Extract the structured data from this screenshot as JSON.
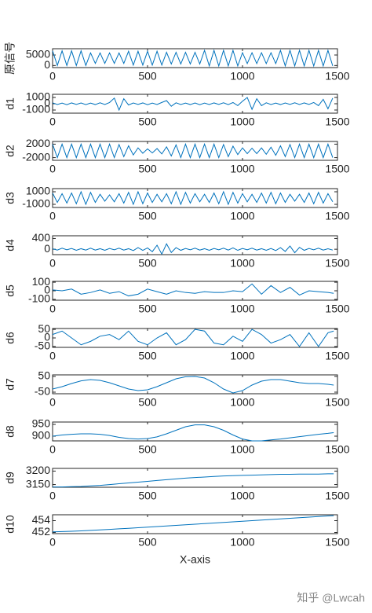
{
  "watermark": "知乎 @Lwcah",
  "chart_data": [
    {
      "type": "line",
      "ylabel": "原信号",
      "color": "#0072bd",
      "xlim": [
        0,
        1500
      ],
      "xticks": [
        0,
        500,
        1000,
        1500
      ],
      "ylim": [
        -1000,
        8000
      ],
      "yticks": [
        0,
        5000
      ],
      "x": [
        0,
        25,
        50,
        75,
        100,
        125,
        150,
        175,
        200,
        225,
        250,
        275,
        300,
        325,
        350,
        375,
        400,
        425,
        450,
        475,
        500,
        525,
        550,
        575,
        600,
        625,
        650,
        675,
        700,
        725,
        750,
        775,
        800,
        825,
        850,
        875,
        900,
        925,
        950,
        975,
        1000,
        1025,
        1050,
        1075,
        1100,
        1125,
        1150,
        1175,
        1200,
        1225,
        1250,
        1275,
        1300,
        1325,
        1350,
        1375,
        1400,
        1425,
        1450,
        1475
      ],
      "values": [
        7000,
        0,
        7000,
        0,
        7000,
        0,
        7000,
        0,
        6000,
        1000,
        6000,
        1000,
        6000,
        1000,
        6000,
        1000,
        6800,
        200,
        6800,
        200,
        6800,
        200,
        6800,
        200,
        6300,
        700,
        6300,
        700,
        6300,
        700,
        6300,
        700,
        7200,
        -200,
        7200,
        -200,
        7200,
        -200,
        7200,
        -200,
        6100,
        900,
        6100,
        900,
        6100,
        900,
        6100,
        900,
        7200,
        -200,
        7200,
        -200,
        7200,
        -200,
        7200,
        -200,
        7200,
        -200,
        7200,
        -200
      ]
    },
    {
      "type": "line",
      "ylabel": "d1",
      "color": "#0072bd",
      "xlim": [
        0,
        1500
      ],
      "xticks": [
        0,
        500,
        1000,
        1500
      ],
      "ylim": [
        -1500,
        1500
      ],
      "yticks": [
        -1000,
        0,
        1000
      ],
      "x": [
        0,
        25,
        50,
        75,
        100,
        125,
        150,
        175,
        200,
        225,
        250,
        275,
        300,
        325,
        350,
        375,
        400,
        425,
        450,
        475,
        500,
        525,
        550,
        575,
        600,
        625,
        650,
        675,
        700,
        725,
        750,
        775,
        800,
        825,
        850,
        875,
        900,
        925,
        950,
        975,
        1000,
        1025,
        1050,
        1075,
        1100,
        1125,
        1150,
        1175,
        1200,
        1225,
        1250,
        1275,
        1300,
        1325,
        1350,
        1375,
        1400,
        1425,
        1450,
        1475
      ],
      "values": [
        150,
        -120,
        100,
        -150,
        130,
        -100,
        120,
        -140,
        100,
        -130,
        150,
        -120,
        200,
        900,
        -1000,
        800,
        -200,
        120,
        -100,
        130,
        -150,
        100,
        -120,
        200,
        500,
        -400,
        150,
        -120,
        100,
        -130,
        120,
        -150,
        100,
        -120,
        130,
        -100,
        150,
        -130,
        200,
        -300,
        400,
        1000,
        -900,
        800,
        -300,
        150,
        -120,
        100,
        -130,
        120,
        -100,
        150,
        -120,
        130,
        -100,
        200,
        -300,
        700,
        -800,
        900
      ]
    },
    {
      "type": "line",
      "ylabel": "d2",
      "color": "#0072bd",
      "xlim": [
        0,
        1500
      ],
      "xticks": [
        0,
        500,
        1000,
        1500
      ],
      "ylim": [
        -2800,
        2800
      ],
      "yticks": [
        -2000,
        2000
      ],
      "x": [
        0,
        25,
        50,
        75,
        100,
        125,
        150,
        175,
        200,
        225,
        250,
        275,
        300,
        325,
        350,
        375,
        400,
        425,
        450,
        475,
        500,
        525,
        550,
        575,
        600,
        625,
        650,
        675,
        700,
        725,
        750,
        775,
        800,
        825,
        850,
        875,
        900,
        925,
        950,
        975,
        1000,
        1025,
        1050,
        1075,
        1100,
        1125,
        1150,
        1175,
        1200,
        1225,
        1250,
        1275,
        1300,
        1325,
        1350,
        1375,
        1400,
        1425,
        1450,
        1475
      ],
      "values": [
        2000,
        -2000,
        2000,
        -2000,
        2000,
        -2000,
        2000,
        -2000,
        2000,
        -2000,
        2000,
        -2000,
        2000,
        -2000,
        1900,
        -1700,
        1500,
        -1200,
        900,
        -700,
        600,
        -600,
        700,
        -900,
        1200,
        -1500,
        1800,
        -2000,
        2000,
        -2000,
        2000,
        -2000,
        2000,
        -2000,
        2000,
        -2000,
        1900,
        -1700,
        1400,
        -1100,
        900,
        -800,
        800,
        -800,
        900,
        -1000,
        1100,
        -1300,
        1500,
        -1700,
        1900,
        -2000,
        2000,
        -2000,
        2000,
        -2000,
        2000,
        -2000,
        2000,
        -2000
      ]
    },
    {
      "type": "line",
      "ylabel": "d3",
      "color": "#0072bd",
      "xlim": [
        0,
        1500
      ],
      "xticks": [
        0,
        500,
        1000,
        1500
      ],
      "ylim": [
        -1500,
        1500
      ],
      "yticks": [
        -1000,
        1000
      ],
      "x": [
        0,
        25,
        50,
        75,
        100,
        125,
        150,
        175,
        200,
        225,
        250,
        275,
        300,
        325,
        350,
        375,
        400,
        425,
        450,
        475,
        500,
        525,
        550,
        575,
        600,
        625,
        650,
        675,
        700,
        725,
        750,
        775,
        800,
        825,
        850,
        875,
        900,
        925,
        950,
        975,
        1000,
        1025,
        1050,
        1075,
        1100,
        1125,
        1150,
        1175,
        1200,
        1225,
        1250,
        1275,
        1300,
        1325,
        1350,
        1375,
        1400,
        1425,
        1450,
        1475
      ],
      "values": [
        800,
        -700,
        700,
        -800,
        800,
        -900,
        1000,
        -1000,
        900,
        -700,
        600,
        -500,
        500,
        -600,
        700,
        -800,
        900,
        -1000,
        1000,
        -900,
        800,
        -700,
        600,
        -600,
        700,
        -900,
        1000,
        -1000,
        900,
        -800,
        700,
        -600,
        600,
        -700,
        800,
        -900,
        1000,
        -1000,
        900,
        -800,
        700,
        -600,
        600,
        -700,
        800,
        -800,
        900,
        -900,
        800,
        -700,
        600,
        -500,
        600,
        -700,
        800,
        -900,
        900,
        -800,
        700,
        -600
      ]
    },
    {
      "type": "line",
      "ylabel": "d4",
      "color": "#0072bd",
      "xlim": [
        0,
        1500
      ],
      "xticks": [
        0,
        500,
        1000,
        1500
      ],
      "ylim": [
        -200,
        500
      ],
      "yticks": [
        0,
        400
      ],
      "x": [
        0,
        25,
        50,
        75,
        100,
        125,
        150,
        175,
        200,
        225,
        250,
        275,
        300,
        325,
        350,
        375,
        400,
        425,
        450,
        475,
        500,
        525,
        550,
        575,
        600,
        625,
        650,
        675,
        700,
        725,
        750,
        775,
        800,
        825,
        850,
        875,
        900,
        925,
        950,
        975,
        1000,
        1025,
        1050,
        1075,
        1100,
        1125,
        1150,
        1175,
        1200,
        1225,
        1250,
        1275,
        1300,
        1325,
        1350,
        1375,
        1400,
        1425,
        1450,
        1475
      ],
      "values": [
        20,
        -30,
        40,
        -20,
        30,
        -40,
        20,
        -30,
        40,
        -30,
        20,
        -40,
        30,
        -20,
        40,
        -30,
        20,
        -50,
        60,
        -40,
        50,
        -90,
        150,
        -180,
        200,
        -120,
        60,
        -40,
        30,
        -20,
        40,
        -30,
        20,
        -40,
        30,
        -20,
        40,
        -30,
        50,
        -40,
        30,
        -20,
        40,
        -30,
        20,
        -40,
        30,
        -50,
        60,
        -80,
        120,
        -130,
        70,
        -40,
        30,
        -20,
        40,
        -30,
        20,
        -30
      ]
    },
    {
      "type": "line",
      "ylabel": "d5",
      "color": "#0072bd",
      "xlim": [
        0,
        1500
      ],
      "xticks": [
        0,
        500,
        1000,
        1500
      ],
      "ylim": [
        -110,
        110
      ],
      "yticks": [
        -100,
        0,
        100
      ],
      "x": [
        0,
        50,
        100,
        150,
        200,
        250,
        300,
        350,
        400,
        450,
        500,
        550,
        600,
        650,
        700,
        750,
        800,
        850,
        900,
        950,
        1000,
        1050,
        1100,
        1150,
        1200,
        1250,
        1300,
        1350,
        1400,
        1450,
        1480
      ],
      "values": [
        10,
        0,
        20,
        -40,
        -20,
        10,
        -30,
        -10,
        -60,
        -40,
        20,
        -10,
        -40,
        0,
        -20,
        -30,
        -10,
        -20,
        -20,
        0,
        -10,
        80,
        -40,
        60,
        -20,
        40,
        -50,
        0,
        -10,
        -20,
        -30
      ]
    },
    {
      "type": "line",
      "ylabel": "d6",
      "color": "#0072bd",
      "xlim": [
        0,
        1500
      ],
      "xticks": [
        0,
        500,
        1000,
        1500
      ],
      "ylim": [
        -55,
        55
      ],
      "yticks": [
        -50,
        0,
        50
      ],
      "x": [
        0,
        50,
        100,
        150,
        200,
        250,
        300,
        350,
        400,
        450,
        500,
        550,
        600,
        650,
        700,
        750,
        800,
        850,
        900,
        950,
        1000,
        1050,
        1100,
        1150,
        1200,
        1250,
        1300,
        1350,
        1400,
        1450,
        1480
      ],
      "values": [
        20,
        40,
        0,
        -40,
        -20,
        10,
        20,
        -10,
        40,
        -20,
        -40,
        0,
        30,
        -40,
        -10,
        50,
        40,
        -30,
        -40,
        10,
        -20,
        50,
        20,
        -30,
        -10,
        20,
        -50,
        30,
        -50,
        30,
        40
      ]
    },
    {
      "type": "line",
      "ylabel": "d7",
      "color": "#0072bd",
      "xlim": [
        0,
        1500
      ],
      "xticks": [
        0,
        500,
        1000,
        1500
      ],
      "ylim": [
        -60,
        60
      ],
      "yticks": [
        -50,
        50
      ],
      "x": [
        0,
        50,
        100,
        150,
        200,
        250,
        300,
        350,
        400,
        450,
        500,
        550,
        600,
        650,
        700,
        750,
        800,
        850,
        900,
        950,
        1000,
        1050,
        1100,
        1150,
        1200,
        1250,
        1300,
        1350,
        1400,
        1450,
        1480
      ],
      "values": [
        -30,
        -15,
        5,
        22,
        30,
        25,
        10,
        -10,
        -30,
        -40,
        -35,
        -15,
        10,
        35,
        48,
        50,
        40,
        10,
        -30,
        -55,
        -40,
        -5,
        20,
        30,
        30,
        20,
        10,
        5,
        5,
        0,
        -5
      ]
    },
    {
      "type": "line",
      "ylabel": "d8",
      "color": "#0072bd",
      "xlim": [
        0,
        1500
      ],
      "xticks": [
        0,
        500,
        1000,
        1500
      ],
      "ylim": [
        880,
        960
      ],
      "yticks": [
        900,
        950
      ],
      "x": [
        0,
        50,
        100,
        150,
        200,
        250,
        300,
        350,
        400,
        450,
        500,
        550,
        600,
        650,
        700,
        750,
        800,
        850,
        900,
        950,
        1000,
        1050,
        1100,
        1150,
        1200,
        1250,
        1300,
        1350,
        1400,
        1450,
        1480
      ],
      "values": [
        900,
        905,
        908,
        910,
        910,
        908,
        903,
        895,
        890,
        888,
        890,
        897,
        910,
        925,
        940,
        948,
        948,
        940,
        925,
        905,
        888,
        880,
        880,
        884,
        888,
        893,
        898,
        903,
        908,
        912,
        915
      ]
    },
    {
      "type": "line",
      "ylabel": "d9",
      "color": "#0072bd",
      "xlim": [
        0,
        1500
      ],
      "xticks": [
        0,
        500,
        1000,
        1500
      ],
      "ylim": [
        3140,
        3210
      ],
      "yticks": [
        3150,
        3200
      ],
      "x": [
        0,
        50,
        100,
        150,
        200,
        250,
        300,
        350,
        400,
        450,
        500,
        550,
        600,
        650,
        700,
        750,
        800,
        850,
        900,
        950,
        1000,
        1050,
        1100,
        1150,
        1200,
        1250,
        1300,
        1350,
        1400,
        1450,
        1480
      ],
      "values": [
        3141,
        3141,
        3142,
        3143,
        3145,
        3147,
        3150,
        3153,
        3156,
        3159,
        3162,
        3165,
        3168,
        3171,
        3174,
        3176,
        3178,
        3180,
        3182,
        3183,
        3184,
        3185,
        3186,
        3187,
        3188,
        3188,
        3189,
        3189,
        3189,
        3190,
        3190
      ]
    },
    {
      "type": "line",
      "ylabel": "d10",
      "xlabel": "X-axis",
      "color": "#0072bd",
      "xlim": [
        0,
        1500
      ],
      "xticks": [
        0,
        500,
        1000,
        1500
      ],
      "ylim": [
        451.8,
        455
      ],
      "yticks": [
        452,
        454
      ],
      "x": [
        0,
        50,
        100,
        150,
        200,
        250,
        300,
        350,
        400,
        450,
        500,
        550,
        600,
        650,
        700,
        750,
        800,
        850,
        900,
        950,
        1000,
        1050,
        1100,
        1150,
        1200,
        1250,
        1300,
        1350,
        1400,
        1450,
        1480
      ],
      "values": [
        452.1,
        452.15,
        452.2,
        452.27,
        452.35,
        452.43,
        452.52,
        452.61,
        452.7,
        452.8,
        452.9,
        453.0,
        453.1,
        453.2,
        453.3,
        453.4,
        453.5,
        453.6,
        453.7,
        453.8,
        453.9,
        454.0,
        454.1,
        454.2,
        454.3,
        454.4,
        454.5,
        454.6,
        454.7,
        454.8,
        454.85
      ]
    }
  ]
}
